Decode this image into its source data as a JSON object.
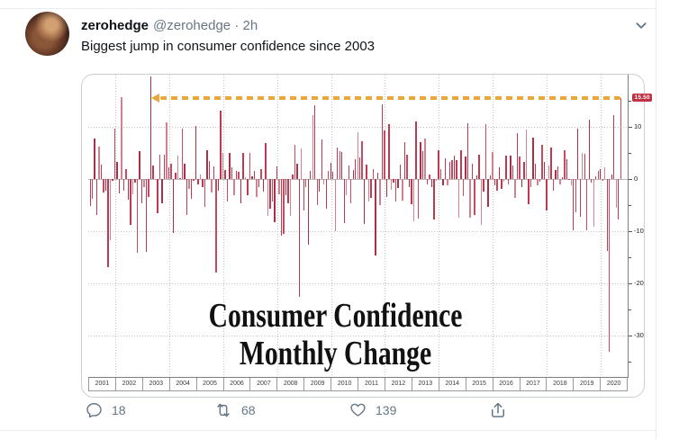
{
  "tweet": {
    "name": "zerohedge",
    "handle": "@zerohedge",
    "dot": "·",
    "time": "2h",
    "text": "Biggest jump in consumer confidence since 2003",
    "actions": {
      "reply_count": "18",
      "retweet_count": "68",
      "like_count": "139"
    }
  },
  "icons": {
    "more": "chevron-down",
    "reply": "speech-bubble",
    "retweet": "cycle-arrows",
    "like": "heart-outline",
    "share": "arrow-up-from-tray"
  },
  "ui_colors": {
    "text": "#0f1419",
    "secondary": "#657786",
    "divider": "#e6ecf0"
  },
  "chart_data": {
    "type": "bar",
    "title_line1": "Consumer Confidence",
    "title_line2": "Monthly Change",
    "x_axis_years": [
      "2001",
      "2002",
      "2003",
      "2004",
      "2005",
      "2006",
      "2007",
      "2008",
      "2009",
      "2010",
      "2011",
      "2012",
      "2013",
      "2014",
      "2015",
      "2016",
      "2017",
      "2018",
      "2019",
      "2020"
    ],
    "start_year": 2001,
    "start_month": 1,
    "ylim": [
      -38,
      20
    ],
    "ytick_values": [
      10,
      0,
      -10,
      -20,
      -30
    ],
    "ytick_labels": [
      "10",
      "0",
      "-10",
      "-20",
      "-30"
    ],
    "minor_tick_values": [
      15,
      5,
      -5,
      -15,
      -25,
      -35
    ],
    "grid_y_values": [
      10,
      -10,
      -20,
      -30
    ],
    "legend": "none",
    "axis_side": "right",
    "callout": {
      "label": "15.50",
      "value": 15.5
    },
    "arrow": {
      "value": 15.5,
      "from_month_index": 27
    },
    "monthly_change_values": [
      -5.2,
      -3.8,
      7.7,
      -7,
      6.2,
      2.8,
      -2.6,
      -2.3,
      -17,
      -11.7,
      -0.4,
      9.7,
      3.2,
      -2.8,
      15.7,
      -2.2,
      1.8,
      -4,
      -8.9,
      -2.9,
      -0.8,
      -14.1,
      5.3,
      -4.6,
      -1.5,
      -14,
      -3.4,
      19.6,
      2.6,
      -0.1,
      -6.5,
      4.7,
      -4.7,
      4.7,
      10.8,
      2.3,
      2.9,
      -10.4,
      1.2,
      4.5,
      0.1,
      9.7,
      2.9,
      -7,
      -2,
      -3.8,
      -0.3,
      10.1,
      -1.1,
      0.9,
      -1.6,
      -5.3,
      5.5,
      3.5,
      -2.6,
      2.4,
      -18,
      -2.3,
      13.1,
      4.9,
      1.7,
      -4.4,
      5,
      2.2,
      -3.1,
      1.6,
      1.3,
      -4.7,
      4.9,
      0.4,
      -3.2,
      5,
      0.5,
      1.6,
      -3.5,
      -1.6,
      1.9,
      -2.4,
      6.9,
      -7.1,
      -5.7,
      -4.3,
      -8.3,
      2.4,
      -3,
      -10.9,
      -10.5,
      -3.1,
      -4.7,
      -7.1,
      0.9,
      6.6,
      2.9,
      -22.6,
      5.9,
      -6.1,
      -1.5,
      -12.6,
      1.6,
      12.3,
      14.1,
      -5.1,
      -2.5,
      7.5,
      -1.1,
      -5.7,
      1.5,
      3,
      1.4,
      -10,
      6.1,
      5.3,
      5.2,
      -8.4,
      -3.1,
      2.5,
      -4.7,
      1.7,
      3.8,
      8.9,
      4.2,
      7.3,
      -8.6,
      2.7,
      -4.4,
      -3.6,
      1.9,
      -14.7,
      1.2,
      -5.1,
      14.3,
      9.3,
      -3.4,
      10.5,
      -2.1,
      -0.8,
      -4.3,
      -1.7,
      2.7,
      -4.1,
      7.1,
      4.7,
      -1.6,
      -4.8,
      -8.1,
      11,
      -7.7,
      7.1,
      5.3,
      7.8,
      -1.1,
      0.8,
      -1.6,
      -7.8,
      -0.4,
      5.5,
      1.8,
      -1.3,
      4,
      -1.3,
      3.2,
      3.6,
      4.4,
      3.6,
      -7.4,
      5.5,
      -3.3,
      4.3,
      10.7,
      -7.4,
      2.9,
      -6.9,
      0.6,
      4.7,
      -8.9,
      -2.5,
      10.5,
      -5.4,
      0.6,
      5.2,
      -1.2,
      -2.3,
      2.2,
      -1.9,
      -0.5,
      4.5,
      -1,
      4.4,
      2.5,
      -3.7,
      8.7,
      4.3,
      -1.5,
      3.2,
      9.5,
      -4.9,
      -1.5,
      8,
      2.9,
      -1.2,
      -0.6,
      6.5,
      3.3,
      -6,
      2.6,
      6,
      -2.3,
      1.7,
      2.4,
      -1,
      0.3,
      5.5,
      3.7,
      -0.2,
      -1.3,
      -9.8,
      -6.4,
      9.7,
      -7.3,
      5,
      4.8,
      -9.8,
      11.4,
      -0.7,
      -9.1,
      0.5,
      1.5,
      1.8,
      -0.4,
      2.2,
      -13.8,
      -33.1,
      0.9,
      12.2,
      -5.5,
      -7.8,
      15.5
    ],
    "colors": {
      "bar_palette": [
        "#bf3a50",
        "#c94a60",
        "#ab2f46",
        "#bf3a50",
        "#d4808e"
      ],
      "arrow": "#e9a63a",
      "badge_bg": "#bf3143",
      "badge_text": "#ffffff",
      "grid": "#c3c3c3",
      "axis": "#7d7d7d",
      "title": "#111111"
    }
  }
}
